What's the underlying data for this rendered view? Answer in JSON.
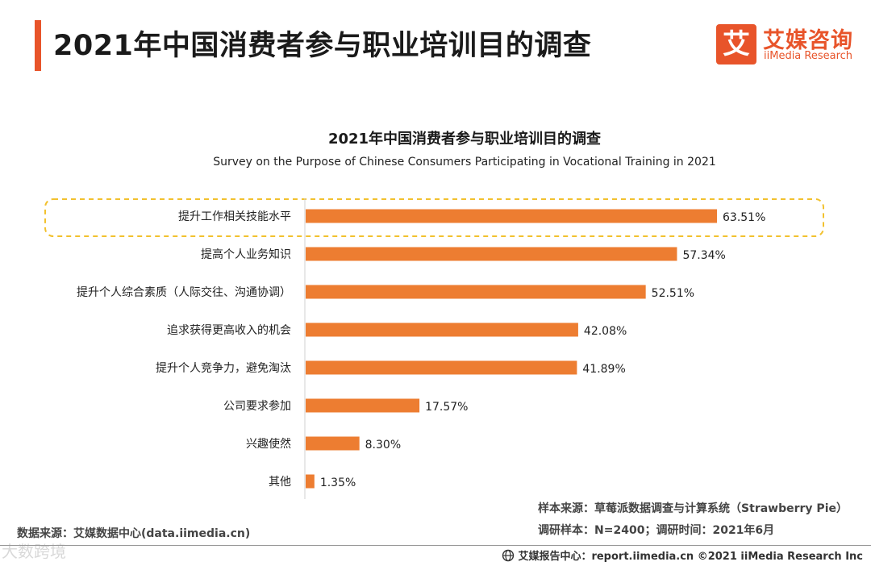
{
  "page": {
    "title": "2021年中国消费者参与职业培训目的调查",
    "brand_color": "#e8542a"
  },
  "logo": {
    "mark": "艾",
    "name_cn": "艾媒咨询",
    "name_en": "iiMedia Research"
  },
  "chart_data": {
    "type": "bar",
    "orientation": "horizontal",
    "title": "2021年中国消费者参与职业培训目的调查",
    "subtitle": "Survey on the Purpose of Chinese Consumers Participating in Vocational Training in 2021",
    "categories": [
      "提升工作相关技能水平",
      "提高个人业务知识",
      "提升个人综合素质（人际交往、沟通协调）",
      "追求获得更高收入的机会",
      "提升个人竞争力，避免淘汰",
      "公司要求参加",
      "兴趣使然",
      "其他"
    ],
    "values": [
      63.51,
      57.34,
      52.51,
      42.08,
      41.89,
      17.57,
      8.3,
      1.35
    ],
    "value_labels": [
      "63.51%",
      "57.34%",
      "52.51%",
      "42.08%",
      "41.89%",
      "17.57%",
      "8.30%",
      "1.35%"
    ],
    "unit": "%",
    "highlighted_category": "提升工作相关技能水平",
    "bar_color": "#ed7d31",
    "highlight_border_color": "#f2c12e",
    "grid": false,
    "legend": "none"
  },
  "notes": {
    "sample_source": "样本来源：草莓派数据调查与计算系统（Strawberry Pie）",
    "sample_info": "调研样本：N=2400；调研时间：2021年6月"
  },
  "data_source": "数据来源：艾媒数据中心(data.iimedia.cn)",
  "watermark": "大数跨境",
  "footer": {
    "icon": "globe-icon",
    "text": "艾媒报告中心：report.iimedia.cn   ©2021  iiMedia Research  Inc"
  }
}
